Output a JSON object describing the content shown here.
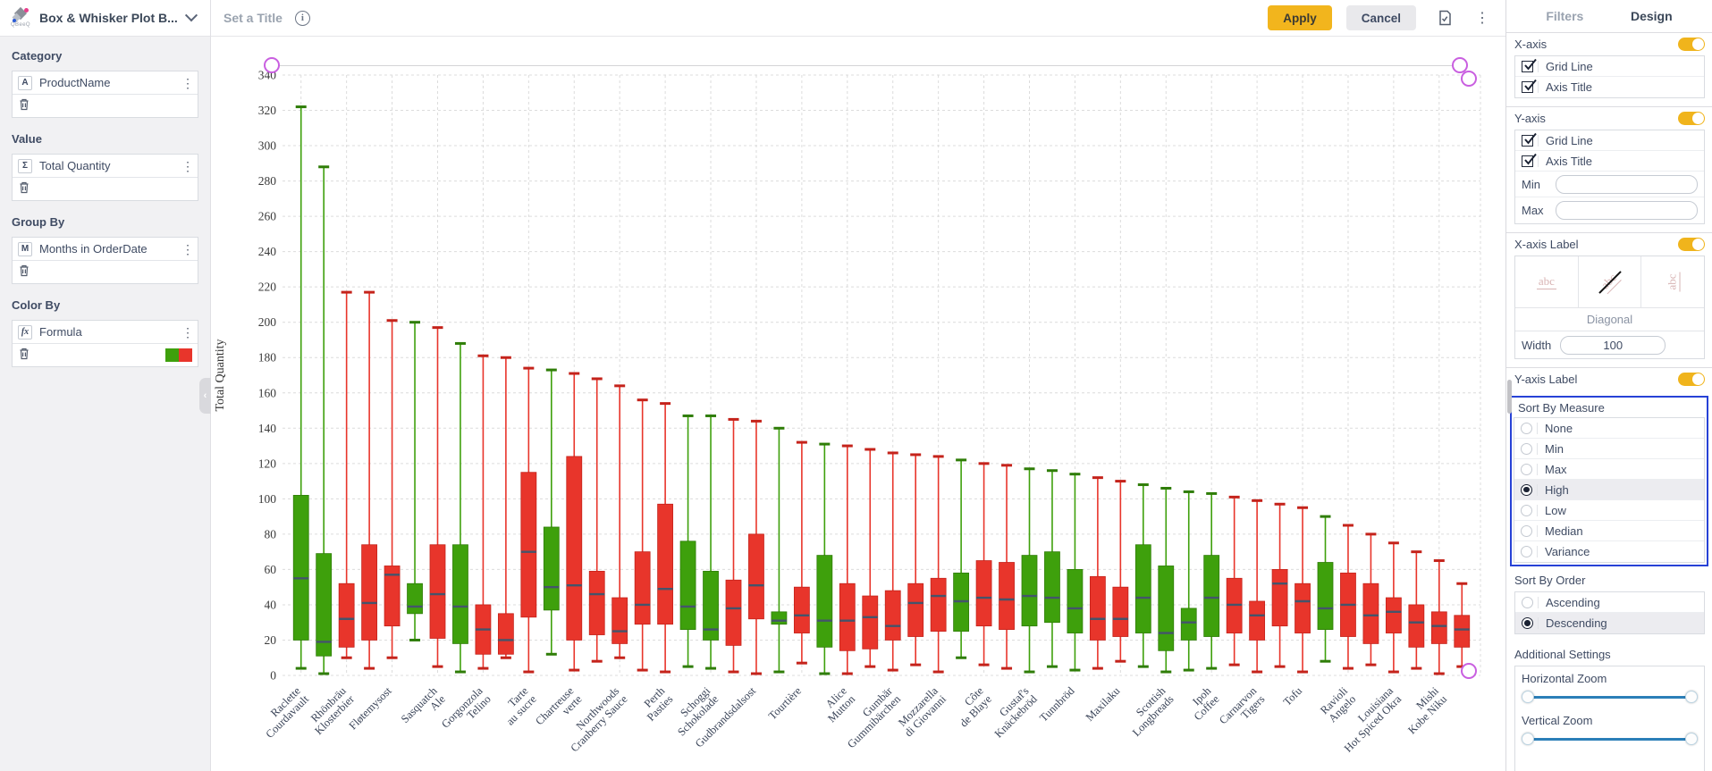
{
  "colors": {
    "green": "#3EA00C",
    "green_dark": "#2F7D08",
    "red": "#E8352B",
    "red_dark": "#C4231B",
    "median": "#44546B",
    "grid": "#DCDCDC",
    "purple": "#C95FE0",
    "amber": "#F0B41C",
    "outline_blue": "#2742D6",
    "slider_blue": "#2B7FB8"
  },
  "sidebar": {
    "logo_caption": "QBeeQ",
    "title": "Box & Whisker Plot B...",
    "sections": [
      {
        "label": "Category",
        "icon": "A",
        "field": "ProductName",
        "swatch": false
      },
      {
        "label": "Value",
        "icon": "Σ",
        "field": "Total Quantity",
        "swatch": false
      },
      {
        "label": "Group By",
        "icon": "M",
        "field": "Months in OrderDate",
        "swatch": false
      },
      {
        "label": "Color By",
        "icon": "fx",
        "field": "Formula",
        "swatch": true
      }
    ]
  },
  "toolbar": {
    "set_title": "Set a Title",
    "apply": "Apply",
    "cancel": "Cancel"
  },
  "panel": {
    "tabs": {
      "filters": "Filters",
      "design": "Design",
      "active": "Design"
    },
    "xaxis": {
      "title": "X-axis",
      "toggle": true,
      "rows": [
        "Grid Line",
        "Axis Title"
      ]
    },
    "yaxis": {
      "title": "Y-axis",
      "toggle": true,
      "rows": [
        "Grid Line",
        "Axis Title"
      ],
      "inputs": [
        {
          "label": "Min",
          "value": ""
        },
        {
          "label": "Max",
          "value": ""
        }
      ]
    },
    "xaxis_label": {
      "title": "X-axis Label",
      "toggle": true,
      "abc": "abc",
      "selected_orientation": "Diagonal",
      "width": {
        "label": "Width",
        "value": "100"
      }
    },
    "yaxis_label": {
      "title": "Y-axis Label",
      "toggle": true
    },
    "sort_by_measure": {
      "title": "Sort By Measure",
      "highlighted": true,
      "selected": "High",
      "options": [
        "None",
        "Min",
        "Max",
        "High",
        "Low",
        "Median",
        "Variance"
      ]
    },
    "sort_by_order": {
      "title": "Sort By Order",
      "selected": "Descending",
      "options": [
        "Ascending",
        "Descending"
      ]
    },
    "additional": {
      "title": "Additional Settings",
      "sliders": [
        "Horizontal Zoom",
        "Vertical Zoom"
      ]
    }
  },
  "chart_data": {
    "type": "box",
    "ylabel": "Total Quantity",
    "ylim": [
      0,
      340
    ],
    "ytick_step": 20,
    "grid": true,
    "label_interval": 2,
    "categories": [
      "Raclette Courdavault",
      "Rhönbräu Klosterbier",
      "Fløtemysost",
      "Sasquatch Ale",
      "Gorgonzola Telino",
      "Tarte au sucre",
      "Chartreuse verte",
      "Northwoods Cranberry Sauce",
      "Perth Pasties",
      "Schoggi Schokolade",
      "Gudbrandsdalsost",
      "Tourtière",
      "Alice Mutton",
      "Gumbär Gummibärchen",
      "Mozzarella di Giovanni",
      "Côte de Blaye",
      "Gustaf's Knäckebröd",
      "Tunnbröd",
      "Maxilaku",
      "Scottish Longbreads",
      "Ipoh Coffee",
      "Carnarvon Tigers",
      "Tofu",
      "Ravioli Angelo",
      "Louisiana Hot Spiced Okra",
      "Mishi Kobe Niku"
    ],
    "boxes": [
      {
        "high": 322,
        "q3": 102,
        "median": 55,
        "q1": 20,
        "low": 4,
        "color": "green"
      },
      {
        "high": 288,
        "q3": 69,
        "median": 19,
        "q1": 11,
        "low": 1,
        "color": "green"
      },
      {
        "high": 217,
        "q3": 52,
        "median": 32,
        "q1": 16,
        "low": 10,
        "color": "red"
      },
      {
        "high": 217,
        "q3": 74,
        "median": 41,
        "q1": 20,
        "low": 4,
        "color": "red"
      },
      {
        "high": 201,
        "q3": 62,
        "median": 57,
        "q1": 28,
        "low": 10,
        "color": "red"
      },
      {
        "high": 200,
        "q3": 52,
        "median": 39,
        "q1": 35,
        "low": 20,
        "color": "green"
      },
      {
        "high": 197,
        "q3": 74,
        "median": 46,
        "q1": 21,
        "low": 5,
        "color": "red"
      },
      {
        "high": 188,
        "q3": 74,
        "median": 39,
        "q1": 18,
        "low": 2,
        "color": "green"
      },
      {
        "high": 181,
        "q3": 40,
        "median": 26,
        "q1": 12,
        "low": 4,
        "color": "red"
      },
      {
        "high": 180,
        "q3": 35,
        "median": 20,
        "q1": 12,
        "low": 10,
        "color": "red"
      },
      {
        "high": 174,
        "q3": 115,
        "median": 70,
        "q1": 33,
        "low": 2,
        "color": "red"
      },
      {
        "high": 173,
        "q3": 84,
        "median": 50,
        "q1": 37,
        "low": 12,
        "color": "green"
      },
      {
        "high": 171,
        "q3": 124,
        "median": 51,
        "q1": 20,
        "low": 3,
        "color": "red"
      },
      {
        "high": 168,
        "q3": 59,
        "median": 46,
        "q1": 23,
        "low": 8,
        "color": "red"
      },
      {
        "high": 164,
        "q3": 44,
        "median": 25,
        "q1": 18,
        "low": 10,
        "color": "red"
      },
      {
        "high": 156,
        "q3": 70,
        "median": 40,
        "q1": 29,
        "low": 3,
        "color": "red"
      },
      {
        "high": 154,
        "q3": 97,
        "median": 49,
        "q1": 29,
        "low": 2,
        "color": "red"
      },
      {
        "high": 147,
        "q3": 76,
        "median": 39,
        "q1": 26,
        "low": 5,
        "color": "green"
      },
      {
        "high": 147,
        "q3": 59,
        "median": 26,
        "q1": 20,
        "low": 4,
        "color": "green"
      },
      {
        "high": 145,
        "q3": 54,
        "median": 38,
        "q1": 17,
        "low": 2,
        "color": "red"
      },
      {
        "high": 144,
        "q3": 80,
        "median": 51,
        "q1": 32,
        "low": 1,
        "color": "red"
      },
      {
        "high": 140,
        "q3": 36,
        "median": 31,
        "q1": 29,
        "low": 2,
        "color": "green"
      },
      {
        "high": 132,
        "q3": 50,
        "median": 34,
        "q1": 24,
        "low": 7,
        "color": "red"
      },
      {
        "high": 131,
        "q3": 68,
        "median": 31,
        "q1": 16,
        "low": 1,
        "color": "green"
      },
      {
        "high": 130,
        "q3": 52,
        "median": 31,
        "q1": 14,
        "low": 1,
        "color": "red"
      },
      {
        "high": 128,
        "q3": 45,
        "median": 33,
        "q1": 15,
        "low": 5,
        "color": "red"
      },
      {
        "high": 126,
        "q3": 48,
        "median": 28,
        "q1": 20,
        "low": 3,
        "color": "red"
      },
      {
        "high": 125,
        "q3": 52,
        "median": 41,
        "q1": 22,
        "low": 6,
        "color": "red"
      },
      {
        "high": 124,
        "q3": 55,
        "median": 45,
        "q1": 25,
        "low": 2,
        "color": "red"
      },
      {
        "high": 122,
        "q3": 58,
        "median": 42,
        "q1": 25,
        "low": 10,
        "color": "green"
      },
      {
        "high": 120,
        "q3": 65,
        "median": 44,
        "q1": 28,
        "low": 6,
        "color": "red"
      },
      {
        "high": 119,
        "q3": 64,
        "median": 43,
        "q1": 26,
        "low": 4,
        "color": "red"
      },
      {
        "high": 117,
        "q3": 68,
        "median": 45,
        "q1": 28,
        "low": 2,
        "color": "green"
      },
      {
        "high": 116,
        "q3": 70,
        "median": 44,
        "q1": 30,
        "low": 5,
        "color": "green"
      },
      {
        "high": 114,
        "q3": 60,
        "median": 38,
        "q1": 24,
        "low": 3,
        "color": "green"
      },
      {
        "high": 112,
        "q3": 56,
        "median": 32,
        "q1": 20,
        "low": 4,
        "color": "red"
      },
      {
        "high": 110,
        "q3": 50,
        "median": 32,
        "q1": 22,
        "low": 8,
        "color": "red"
      },
      {
        "high": 108,
        "q3": 74,
        "median": 44,
        "q1": 24,
        "low": 5,
        "color": "green"
      },
      {
        "high": 106,
        "q3": 62,
        "median": 24,
        "q1": 14,
        "low": 2,
        "color": "green"
      },
      {
        "high": 104,
        "q3": 38,
        "median": 30,
        "q1": 20,
        "low": 3,
        "color": "green"
      },
      {
        "high": 103,
        "q3": 68,
        "median": 44,
        "q1": 22,
        "low": 4,
        "color": "green"
      },
      {
        "high": 101,
        "q3": 55,
        "median": 40,
        "q1": 24,
        "low": 6,
        "color": "red"
      },
      {
        "high": 99,
        "q3": 42,
        "median": 34,
        "q1": 20,
        "low": 2,
        "color": "red"
      },
      {
        "high": 97,
        "q3": 60,
        "median": 52,
        "q1": 28,
        "low": 5,
        "color": "red"
      },
      {
        "high": 95,
        "q3": 52,
        "median": 42,
        "q1": 24,
        "low": 2,
        "color": "red"
      },
      {
        "high": 90,
        "q3": 64,
        "median": 38,
        "q1": 26,
        "low": 8,
        "color": "green"
      },
      {
        "high": 85,
        "q3": 58,
        "median": 40,
        "q1": 22,
        "low": 4,
        "color": "red"
      },
      {
        "high": 80,
        "q3": 52,
        "median": 34,
        "q1": 18,
        "low": 6,
        "color": "red"
      },
      {
        "high": 75,
        "q3": 44,
        "median": 36,
        "q1": 24,
        "low": 2,
        "color": "red"
      },
      {
        "high": 70,
        "q3": 40,
        "median": 30,
        "q1": 16,
        "low": 4,
        "color": "red"
      },
      {
        "high": 65,
        "q3": 36,
        "median": 28,
        "q1": 18,
        "low": 1,
        "color": "red"
      },
      {
        "high": 52,
        "q3": 34,
        "median": 26,
        "q1": 16,
        "low": 5,
        "color": "red"
      }
    ]
  }
}
